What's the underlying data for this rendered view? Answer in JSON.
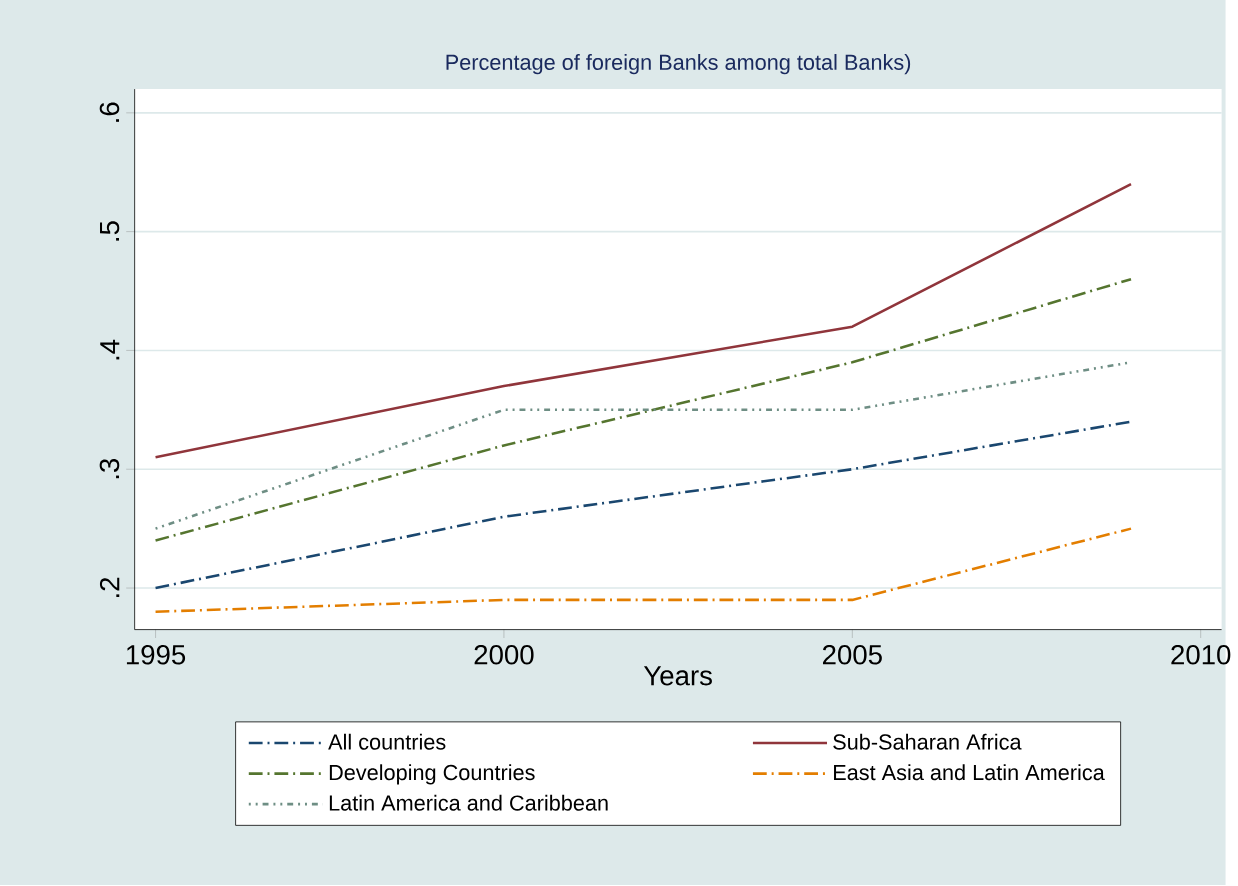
{
  "chart_data": {
    "type": "line",
    "title": "Percentage of foreign Banks among total Banks)",
    "xlabel": "Years",
    "x": [
      1995,
      2000,
      2005,
      2009
    ],
    "series": [
      {
        "name": "All countries",
        "color": "#1a476f",
        "line_style": "dashed",
        "values": [
          0.2,
          0.26,
          0.3,
          0.34
        ]
      },
      {
        "name": "Sub-Saharan Africa",
        "color": "#90353b",
        "line_style": "solid",
        "values": [
          0.31,
          0.37,
          0.42,
          0.54
        ]
      },
      {
        "name": "Developing Countries",
        "color": "#55752f",
        "line_style": "dashed",
        "values": [
          0.24,
          0.32,
          0.39,
          0.46
        ]
      },
      {
        "name": "East Asia and Latin America",
        "color": "#e37e00",
        "line_style": "dashed",
        "values": [
          0.18,
          0.19,
          0.19,
          0.25
        ]
      },
      {
        "name": "Latin America and Caribbean",
        "color": "#6e8e84",
        "line_style": "dotted",
        "values": [
          0.25,
          0.35,
          0.35,
          0.39
        ]
      }
    ],
    "xlim": [
      1994.7,
      2010.3
    ],
    "ylim": [
      0.165,
      0.62
    ],
    "xticks": [
      1995,
      2000,
      2005,
      2010
    ],
    "yticks": [
      {
        "value": 0.2,
        "label": ".2"
      },
      {
        "value": 0.3,
        "label": ".3"
      },
      {
        "value": 0.4,
        "label": ".4"
      },
      {
        "value": 0.5,
        "label": ".5"
      },
      {
        "value": 0.6,
        "label": ".6"
      }
    ],
    "grid": "y",
    "legend": "bottom",
    "marker": "none"
  }
}
